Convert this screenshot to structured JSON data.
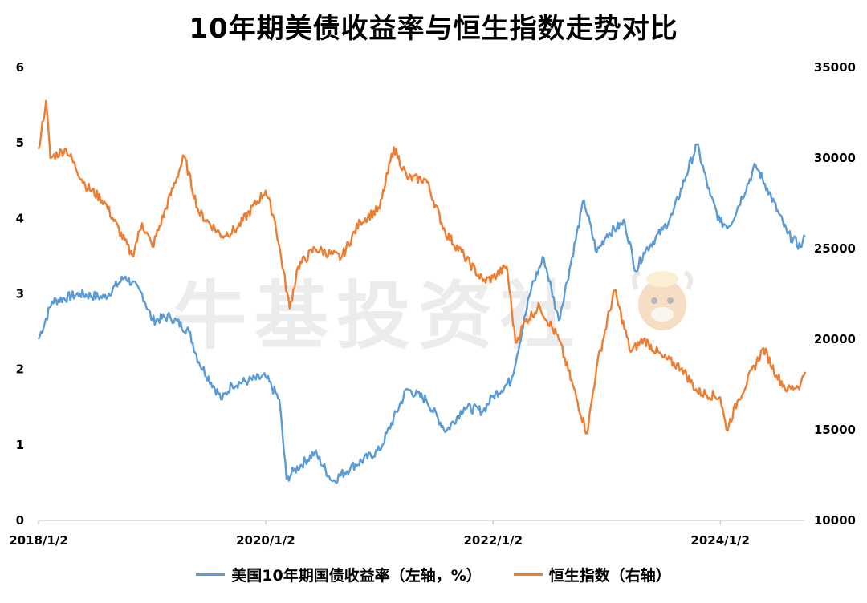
{
  "title": "10年期美债收益率与恒生指数走势对比",
  "watermark": "牛基投资社",
  "colors": {
    "yield": "#5b9bd5",
    "hsi": "#ed7d31"
  },
  "chart_data": {
    "type": "line",
    "title": "10年期美债收益率与恒生指数走势对比",
    "x_ticks": [
      "2018/1/2",
      "2020/1/2",
      "2022/1/2",
      "2024/1/2"
    ],
    "x_range": [
      "2018/1/2",
      "2024/10/1"
    ],
    "y_left": {
      "ticks": [
        "0",
        "1",
        "2",
        "3",
        "4",
        "5",
        "6"
      ],
      "range": [
        0,
        6
      ]
    },
    "y_right": {
      "ticks": [
        "10000",
        "15000",
        "20000",
        "25000",
        "30000",
        "35000"
      ],
      "range": [
        10000,
        35000
      ]
    },
    "grid": false,
    "legend_position": "bottom",
    "series": [
      {
        "name": "美国10年期国债收益率（左轴，%）",
        "axis": "left",
        "color": "#5b9bd5",
        "x": [
          "2018/1/2",
          "2018/2/15",
          "2018/5/15",
          "2018/8/1",
          "2018/10/8",
          "2018/12/1",
          "2019/1/3",
          "2019/3/1",
          "2019/5/1",
          "2019/6/1",
          "2019/8/15",
          "2019/9/15",
          "2019/11/8",
          "2020/1/2",
          "2020/2/15",
          "2020/3/9",
          "2020/4/1",
          "2020/6/8",
          "2020/8/4",
          "2020/10/1",
          "2021/1/2",
          "2021/3/31",
          "2021/6/1",
          "2021/8/4",
          "2021/10/1",
          "2021/12/1",
          "2022/1/2",
          "2022/3/1",
          "2022/5/6",
          "2022/6/14",
          "2022/8/1",
          "2022/10/21",
          "2022/12/1",
          "2023/1/3",
          "2023/3/1",
          "2023/4/6",
          "2023/5/1",
          "2023/7/1",
          "2023/8/1",
          "2023/10/19",
          "2023/12/1",
          "2024/1/2",
          "2024/2/1",
          "2024/4/25",
          "2024/6/1",
          "2024/8/5",
          "2024/9/16",
          "2024/10/1"
        ],
        "values": [
          2.4,
          2.9,
          3.0,
          2.95,
          3.23,
          3.0,
          2.65,
          2.7,
          2.5,
          2.1,
          1.6,
          1.8,
          1.85,
          1.9,
          1.6,
          0.55,
          0.65,
          0.9,
          0.52,
          0.7,
          0.93,
          1.74,
          1.6,
          1.18,
          1.5,
          1.45,
          1.65,
          1.85,
          3.1,
          3.48,
          2.65,
          4.24,
          3.55,
          3.79,
          3.95,
          3.3,
          3.55,
          3.85,
          4.05,
          4.98,
          4.3,
          3.95,
          3.9,
          4.7,
          4.4,
          3.8,
          3.62,
          3.75
        ]
      },
      {
        "name": "恒生指数（右轴）",
        "axis": "right",
        "color": "#ed7d31",
        "x": [
          "2018/1/2",
          "2018/1/26",
          "2018/2/9",
          "2018/4/1",
          "2018/6/1",
          "2018/8/1",
          "2018/10/30",
          "2018/12/1",
          "2019/1/3",
          "2019/4/15",
          "2019/6/1",
          "2019/8/15",
          "2019/10/1",
          "2020/1/2",
          "2020/2/1",
          "2020/3/19",
          "2020/4/15",
          "2020/6/8",
          "2020/9/1",
          "2020/11/1",
          "2021/1/2",
          "2021/2/17",
          "2021/4/1",
          "2021/6/1",
          "2021/8/1",
          "2021/10/1",
          "2021/12/1",
          "2022/1/2",
          "2022/2/15",
          "2022/3/15",
          "2022/4/15",
          "2022/6/1",
          "2022/8/1",
          "2022/10/31",
          "2022/12/1",
          "2023/1/27",
          "2023/3/20",
          "2023/5/1",
          "2023/7/1",
          "2023/9/1",
          "2023/10/20",
          "2024/1/2",
          "2024/1/22",
          "2024/3/1",
          "2024/5/20",
          "2024/7/1",
          "2024/8/5",
          "2024/9/16",
          "2024/10/1"
        ],
        "values": [
          30500,
          33150,
          30000,
          30500,
          28500,
          27600,
          24600,
          26400,
          25100,
          30100,
          27000,
          25700,
          26100,
          28200,
          26500,
          21700,
          24000,
          25000,
          24500,
          26500,
          27200,
          30600,
          28900,
          28800,
          25900,
          24600,
          23200,
          23400,
          24000,
          19800,
          21000,
          21800,
          20000,
          14800,
          18500,
          22700,
          19300,
          20000,
          19000,
          18400,
          17100,
          16800,
          15000,
          16700,
          19500,
          18000,
          17200,
          17500,
          18200
        ]
      }
    ]
  }
}
